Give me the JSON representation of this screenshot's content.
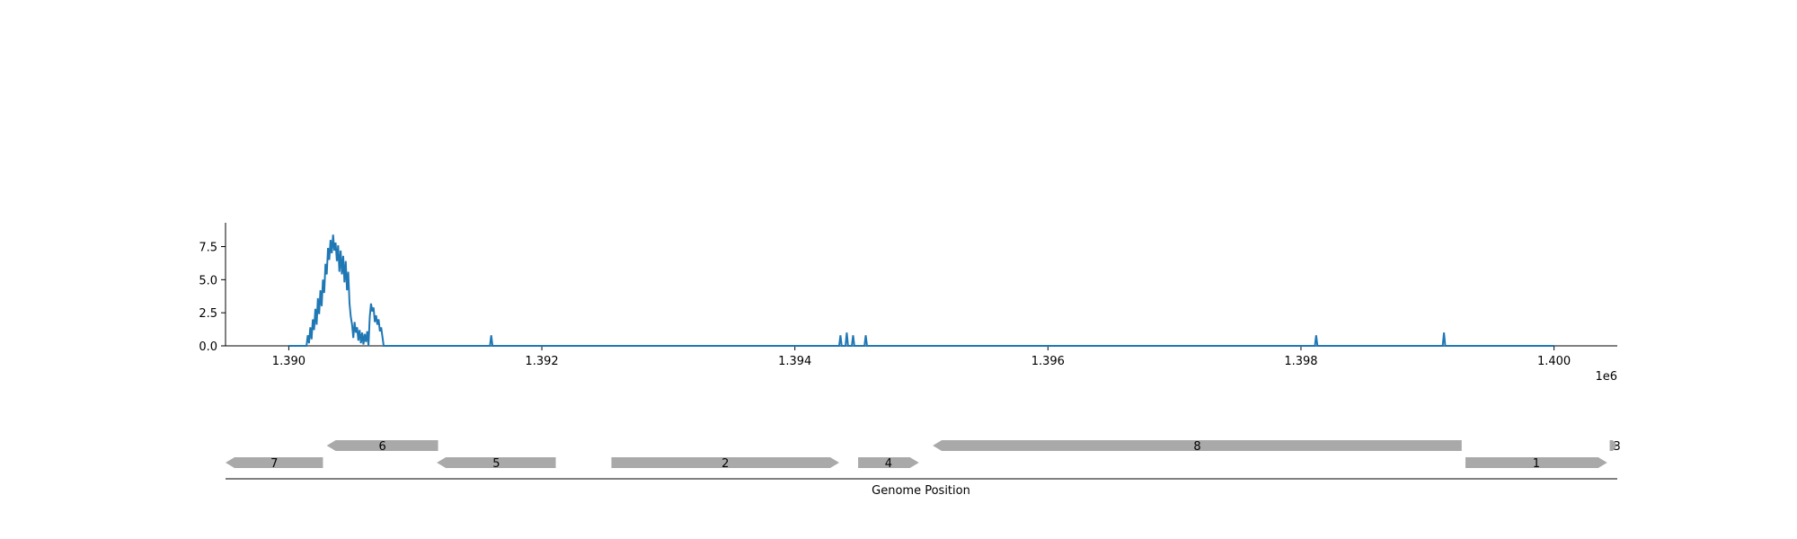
{
  "chart_data": {
    "type": "line",
    "title": "",
    "xlabel": "Genome Position",
    "ylabel": "",
    "x_offset_label": "1e6",
    "xlim": [
      1389500,
      1400500
    ],
    "ylim": [
      0,
      9.3
    ],
    "x_ticks": [
      1390000,
      1392000,
      1394000,
      1396000,
      1398000,
      1400000
    ],
    "x_tick_labels": [
      "1.390",
      "1.392",
      "1.394",
      "1.396",
      "1.398",
      "1.400"
    ],
    "y_ticks": [
      0,
      2.5,
      5,
      7.5
    ],
    "y_tick_labels": [
      "0.0",
      "2.5",
      "5.0",
      "7.5"
    ],
    "grid": false,
    "series": [
      {
        "color": "#1f77b4",
        "x": [
          1390000,
          1390140,
          1390150,
          1390160,
          1390170,
          1390180,
          1390190,
          1390200,
          1390210,
          1390220,
          1390230,
          1390240,
          1390250,
          1390260,
          1390270,
          1390280,
          1390290,
          1390300,
          1390310,
          1390320,
          1390330,
          1390340,
          1390350,
          1390360,
          1390370,
          1390380,
          1390390,
          1390400,
          1390410,
          1390420,
          1390430,
          1390440,
          1390450,
          1390460,
          1390470,
          1390480,
          1390490,
          1390500,
          1390510,
          1390520,
          1390530,
          1390540,
          1390550,
          1390560,
          1390570,
          1390580,
          1390590,
          1390600,
          1390610,
          1390620,
          1390630,
          1390640,
          1390650,
          1390660,
          1390670,
          1390680,
          1390690,
          1390700,
          1390710,
          1390720,
          1390730,
          1390740,
          1390750,
          1391590,
          1391600,
          1391610,
          1394350,
          1394360,
          1394370,
          1394400,
          1394410,
          1394420,
          1394450,
          1394460,
          1394470,
          1394550,
          1394560,
          1394570,
          1398110,
          1398120,
          1398130,
          1399120,
          1399130,
          1399140,
          1400000
        ],
        "y": [
          0,
          0,
          0.8,
          0.2,
          1.4,
          0.5,
          2.0,
          1.2,
          2.8,
          1.6,
          3.6,
          2.4,
          4.2,
          3.0,
          5.0,
          4.0,
          6.2,
          5.4,
          7.4,
          6.5,
          8.0,
          7.0,
          8.4,
          7.2,
          7.8,
          6.4,
          7.6,
          5.6,
          7.2,
          5.4,
          6.8,
          4.8,
          6.4,
          4.2,
          5.6,
          3.2,
          2.2,
          1.6,
          0.6,
          1.8,
          1.0,
          1.4,
          0.4,
          1.2,
          0.2,
          1.0,
          0.1,
          0.9,
          0.3,
          1.1,
          0,
          2.2,
          3.2,
          2.6,
          2.9,
          1.8,
          2.3,
          1.6,
          2.0,
          1.1,
          1.4,
          0.7,
          0,
          0,
          0.8,
          0,
          0,
          0.8,
          0,
          0,
          1.0,
          0,
          0,
          0.8,
          0,
          0,
          0.8,
          0,
          0,
          0.8,
          0,
          0,
          1.0,
          0,
          0
        ]
      }
    ]
  },
  "gene_track": {
    "fill_color": "#a9a9a9",
    "axis_label": "Genome Position",
    "genes": [
      {
        "label": "7",
        "start": 1389500,
        "end": 1390270,
        "strand": "-",
        "row": 0
      },
      {
        "label": "6",
        "start": 1390300,
        "end": 1391180,
        "strand": "-",
        "row": 1
      },
      {
        "label": "5",
        "start": 1391170,
        "end": 1392110,
        "strand": "-",
        "row": 0
      },
      {
        "label": "2",
        "start": 1392550,
        "end": 1394350,
        "strand": "+",
        "row": 0
      },
      {
        "label": "4",
        "start": 1394500,
        "end": 1394980,
        "strand": "+",
        "row": 0
      },
      {
        "label": "8",
        "start": 1395090,
        "end": 1399270,
        "strand": "-",
        "row": 1
      },
      {
        "label": "1",
        "start": 1399300,
        "end": 1400420,
        "strand": "+",
        "row": 0
      },
      {
        "label": "3",
        "start": 1400440,
        "end": 1400500,
        "strand": "+",
        "row": 1
      }
    ]
  }
}
